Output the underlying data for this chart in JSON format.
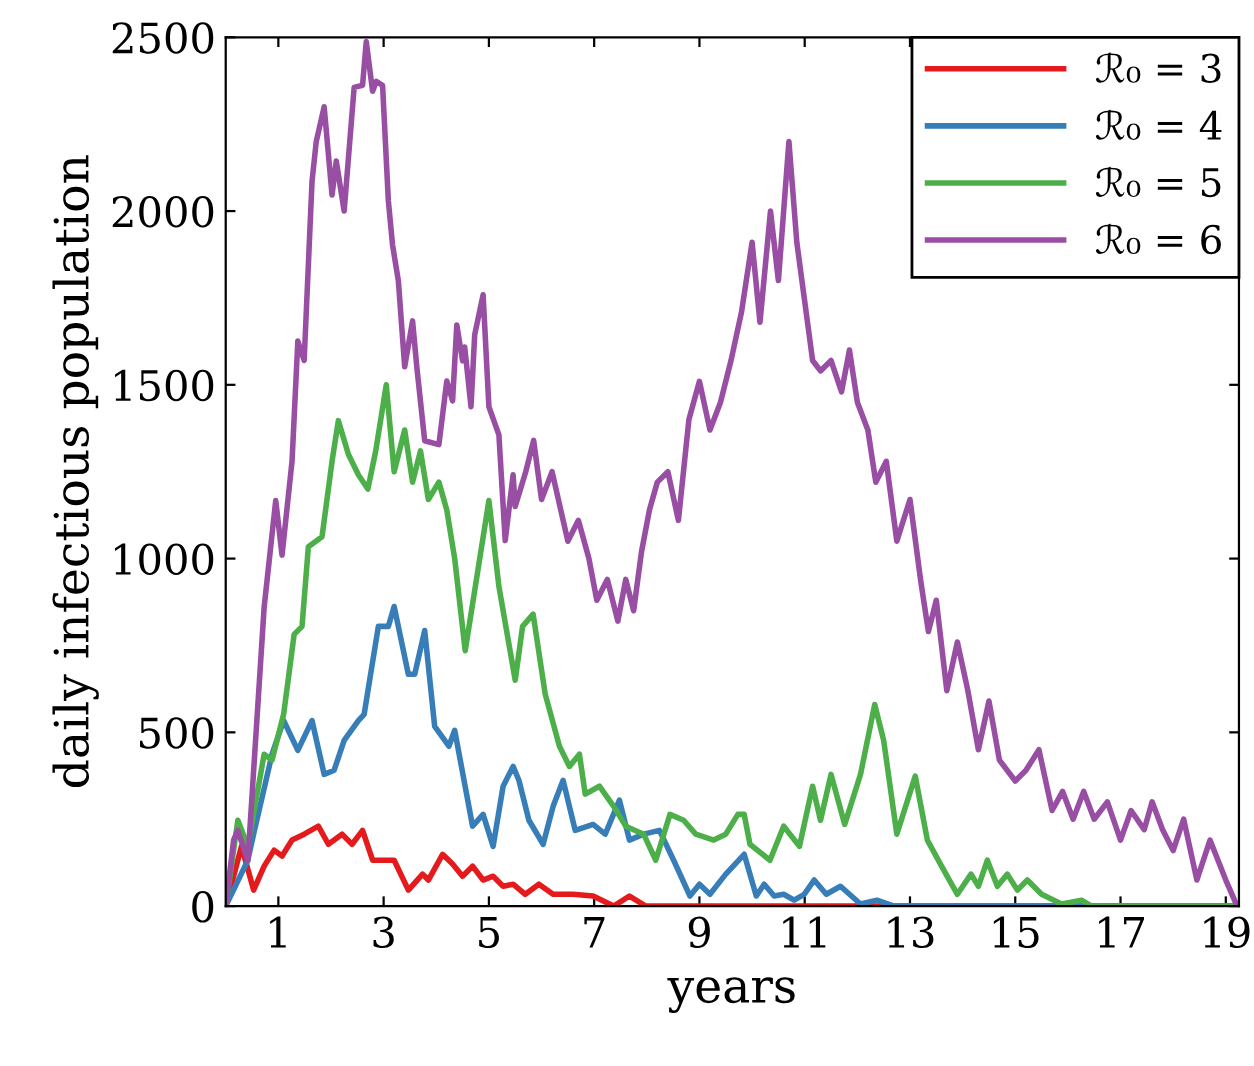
{
  "chart_data": {
    "type": "line",
    "xlabel": "years",
    "ylabel": "daily infectious population",
    "xlim": [
      0,
      19.25
    ],
    "ylim": [
      0,
      2500
    ],
    "xticks": [
      1,
      3,
      5,
      7,
      9,
      11,
      13,
      15,
      17,
      19
    ],
    "yticks": [
      0,
      500,
      1000,
      1500,
      2000,
      2500
    ],
    "grid": false,
    "legend": "top right",
    "line_style": "solid",
    "marker": "none",
    "series": [
      {
        "name": "ℛ₀ = 3",
        "color": "#e41a1c",
        "x": [
          0,
          0.3,
          0.53,
          0.73,
          0.92,
          1.07,
          1.26,
          1.49,
          1.76,
          1.95,
          2.21,
          2.4,
          2.6,
          2.79,
          2.98,
          3.2,
          3.47,
          3.74,
          3.85,
          4.12,
          4.31,
          4.5,
          4.69,
          4.89,
          5.08,
          5.27,
          5.46,
          5.69,
          5.95,
          6.22,
          6.6,
          6.98,
          7.37,
          7.67,
          7.98,
          19.2
        ],
        "values": [
          0,
          172,
          46,
          115,
          161,
          144,
          190,
          207,
          230,
          178,
          207,
          178,
          218,
          132,
          132,
          132,
          46,
          92,
          75,
          149,
          121,
          86,
          115,
          75,
          86,
          57,
          63,
          34,
          63,
          34,
          34,
          29,
          0,
          29,
          0,
          0
        ]
      },
      {
        "name": "ℛ₀ = 4",
        "color": "#377eb8",
        "x": [
          0,
          0.42,
          0.53,
          0.88,
          1.1,
          1.37,
          1.64,
          1.87,
          2.06,
          2.25,
          2.52,
          2.63,
          2.9,
          3.09,
          3.2,
          3.47,
          3.59,
          3.78,
          3.97,
          4.24,
          4.35,
          4.69,
          4.89,
          5.08,
          5.27,
          5.46,
          5.57,
          5.76,
          6.03,
          6.22,
          6.41,
          6.64,
          6.98,
          7.21,
          7.48,
          7.67,
          7.94,
          8.24,
          8.51,
          8.82,
          9.0,
          9.2,
          9.5,
          9.85,
          10.08,
          10.23,
          10.42,
          10.6,
          10.8,
          10.99,
          11.18,
          11.41,
          11.68,
          12.06,
          12.37,
          12.7,
          19.2
        ],
        "values": [
          0,
          132,
          207,
          437,
          534,
          448,
          534,
          379,
          391,
          477,
          534,
          552,
          805,
          805,
          862,
          667,
          667,
          793,
          517,
          460,
          506,
          230,
          264,
          172,
          345,
          402,
          362,
          247,
          178,
          287,
          362,
          218,
          235,
          207,
          305,
          190,
          207,
          218,
          132,
          29,
          63,
          34,
          92,
          149,
          29,
          63,
          29,
          34,
          17,
          34,
          75,
          34,
          57,
          6,
          17,
          0,
          0
        ]
      },
      {
        "name": "ℛ₀ = 5",
        "color": "#4daf4a",
        "x": [
          0,
          0.23,
          0.42,
          0.73,
          0.88,
          1.1,
          1.3,
          1.45,
          1.57,
          1.83,
          2.02,
          2.14,
          2.33,
          2.52,
          2.7,
          2.85,
          3.05,
          3.2,
          3.4,
          3.55,
          3.7,
          3.85,
          4.05,
          4.2,
          4.35,
          4.55,
          5.0,
          5.19,
          5.5,
          5.64,
          5.84,
          6.07,
          6.34,
          6.53,
          6.72,
          6.83,
          7.1,
          7.37,
          7.6,
          7.94,
          8.17,
          8.44,
          8.7,
          8.93,
          9.27,
          9.5,
          9.73,
          9.85,
          9.96,
          10.34,
          10.6,
          10.9,
          11.15,
          11.3,
          11.5,
          11.76,
          12.06,
          12.33,
          12.5,
          12.75,
          13.1,
          13.33,
          13.6,
          13.9,
          14.16,
          14.3,
          14.47,
          14.66,
          14.85,
          15.04,
          15.23,
          15.5,
          15.88,
          16.26,
          16.45,
          19.2
        ],
        "values": [
          0,
          247,
          172,
          437,
          420,
          552,
          782,
          805,
          1034,
          1063,
          1280,
          1397,
          1300,
          1241,
          1200,
          1310,
          1500,
          1250,
          1370,
          1220,
          1310,
          1170,
          1220,
          1140,
          1000,
          735,
          1167,
          920,
          650,
          805,
          840,
          610,
          460,
          402,
          437,
          322,
          345,
          287,
          230,
          207,
          132,
          264,
          247,
          207,
          190,
          207,
          264,
          264,
          178,
          132,
          230,
          172,
          345,
          247,
          379,
          235,
          379,
          580,
          477,
          207,
          374,
          190,
          115,
          34,
          92,
          57,
          132,
          57,
          92,
          46,
          75,
          34,
          6,
          17,
          0,
          0
        ]
      },
      {
        "name": "ℛ₀ = 6",
        "color": "#984ea3",
        "x": [
          0,
          0.15,
          0.23,
          0.42,
          0.73,
          0.95,
          1.07,
          1.26,
          1.37,
          1.49,
          1.64,
          1.72,
          1.87,
          2.02,
          2.1,
          2.25,
          2.44,
          2.6,
          2.67,
          2.79,
          2.86,
          2.98,
          3.09,
          3.17,
          3.28,
          3.4,
          3.55,
          3.63,
          3.78,
          4.05,
          4.2,
          4.31,
          4.39,
          4.5,
          4.54,
          4.66,
          4.73,
          4.89,
          5.0,
          5.19,
          5.31,
          5.46,
          5.5,
          5.7,
          5.85,
          6.0,
          6.2,
          6.5,
          6.7,
          6.9,
          7.05,
          7.25,
          7.45,
          7.6,
          7.75,
          7.9,
          8.05,
          8.2,
          8.4,
          8.6,
          8.8,
          9.0,
          9.2,
          9.4,
          9.6,
          9.8,
          10.0,
          10.15,
          10.35,
          10.5,
          10.7,
          10.85,
          11.0,
          11.15,
          11.3,
          11.5,
          11.7,
          11.85,
          12.0,
          12.2,
          12.35,
          12.55,
          12.75,
          13.0,
          13.2,
          13.35,
          13.5,
          13.7,
          13.9,
          14.1,
          14.3,
          14.5,
          14.7,
          15.0,
          15.2,
          15.45,
          15.7,
          15.9,
          16.1,
          16.3,
          16.5,
          16.75,
          17.0,
          17.2,
          17.45,
          17.6,
          17.8,
          18.0,
          18.2,
          18.45,
          18.7,
          19.0,
          19.2
        ],
        "values": [
          0,
          190,
          218,
          130,
          860,
          1167,
          1010,
          1280,
          1626,
          1570,
          2086,
          2200,
          2300,
          2046,
          2144,
          2000,
          2356,
          2362,
          2488,
          2345,
          2373,
          2362,
          2029,
          1902,
          1799,
          1552,
          1684,
          1552,
          1339,
          1328,
          1511,
          1454,
          1672,
          1569,
          1609,
          1437,
          1644,
          1759,
          1437,
          1356,
          1052,
          1241,
          1150,
          1250,
          1340,
          1170,
          1250,
          1050,
          1110,
          1000,
          880,
          940,
          820,
          940,
          850,
          1020,
          1140,
          1220,
          1250,
          1110,
          1400,
          1510,
          1370,
          1450,
          1570,
          1710,
          1910,
          1680,
          2000,
          1800,
          2200,
          1910,
          1740,
          1570,
          1540,
          1570,
          1480,
          1600,
          1450,
          1370,
          1220,
          1280,
          1050,
          1170,
          940,
          790,
          880,
          620,
          760,
          620,
          450,
          590,
          420,
          360,
          390,
          450,
          275,
          330,
          250,
          330,
          250,
          300,
          190,
          275,
          220,
          300,
          220,
          160,
          250,
          75,
          190,
          75,
          5
        ]
      }
    ]
  }
}
